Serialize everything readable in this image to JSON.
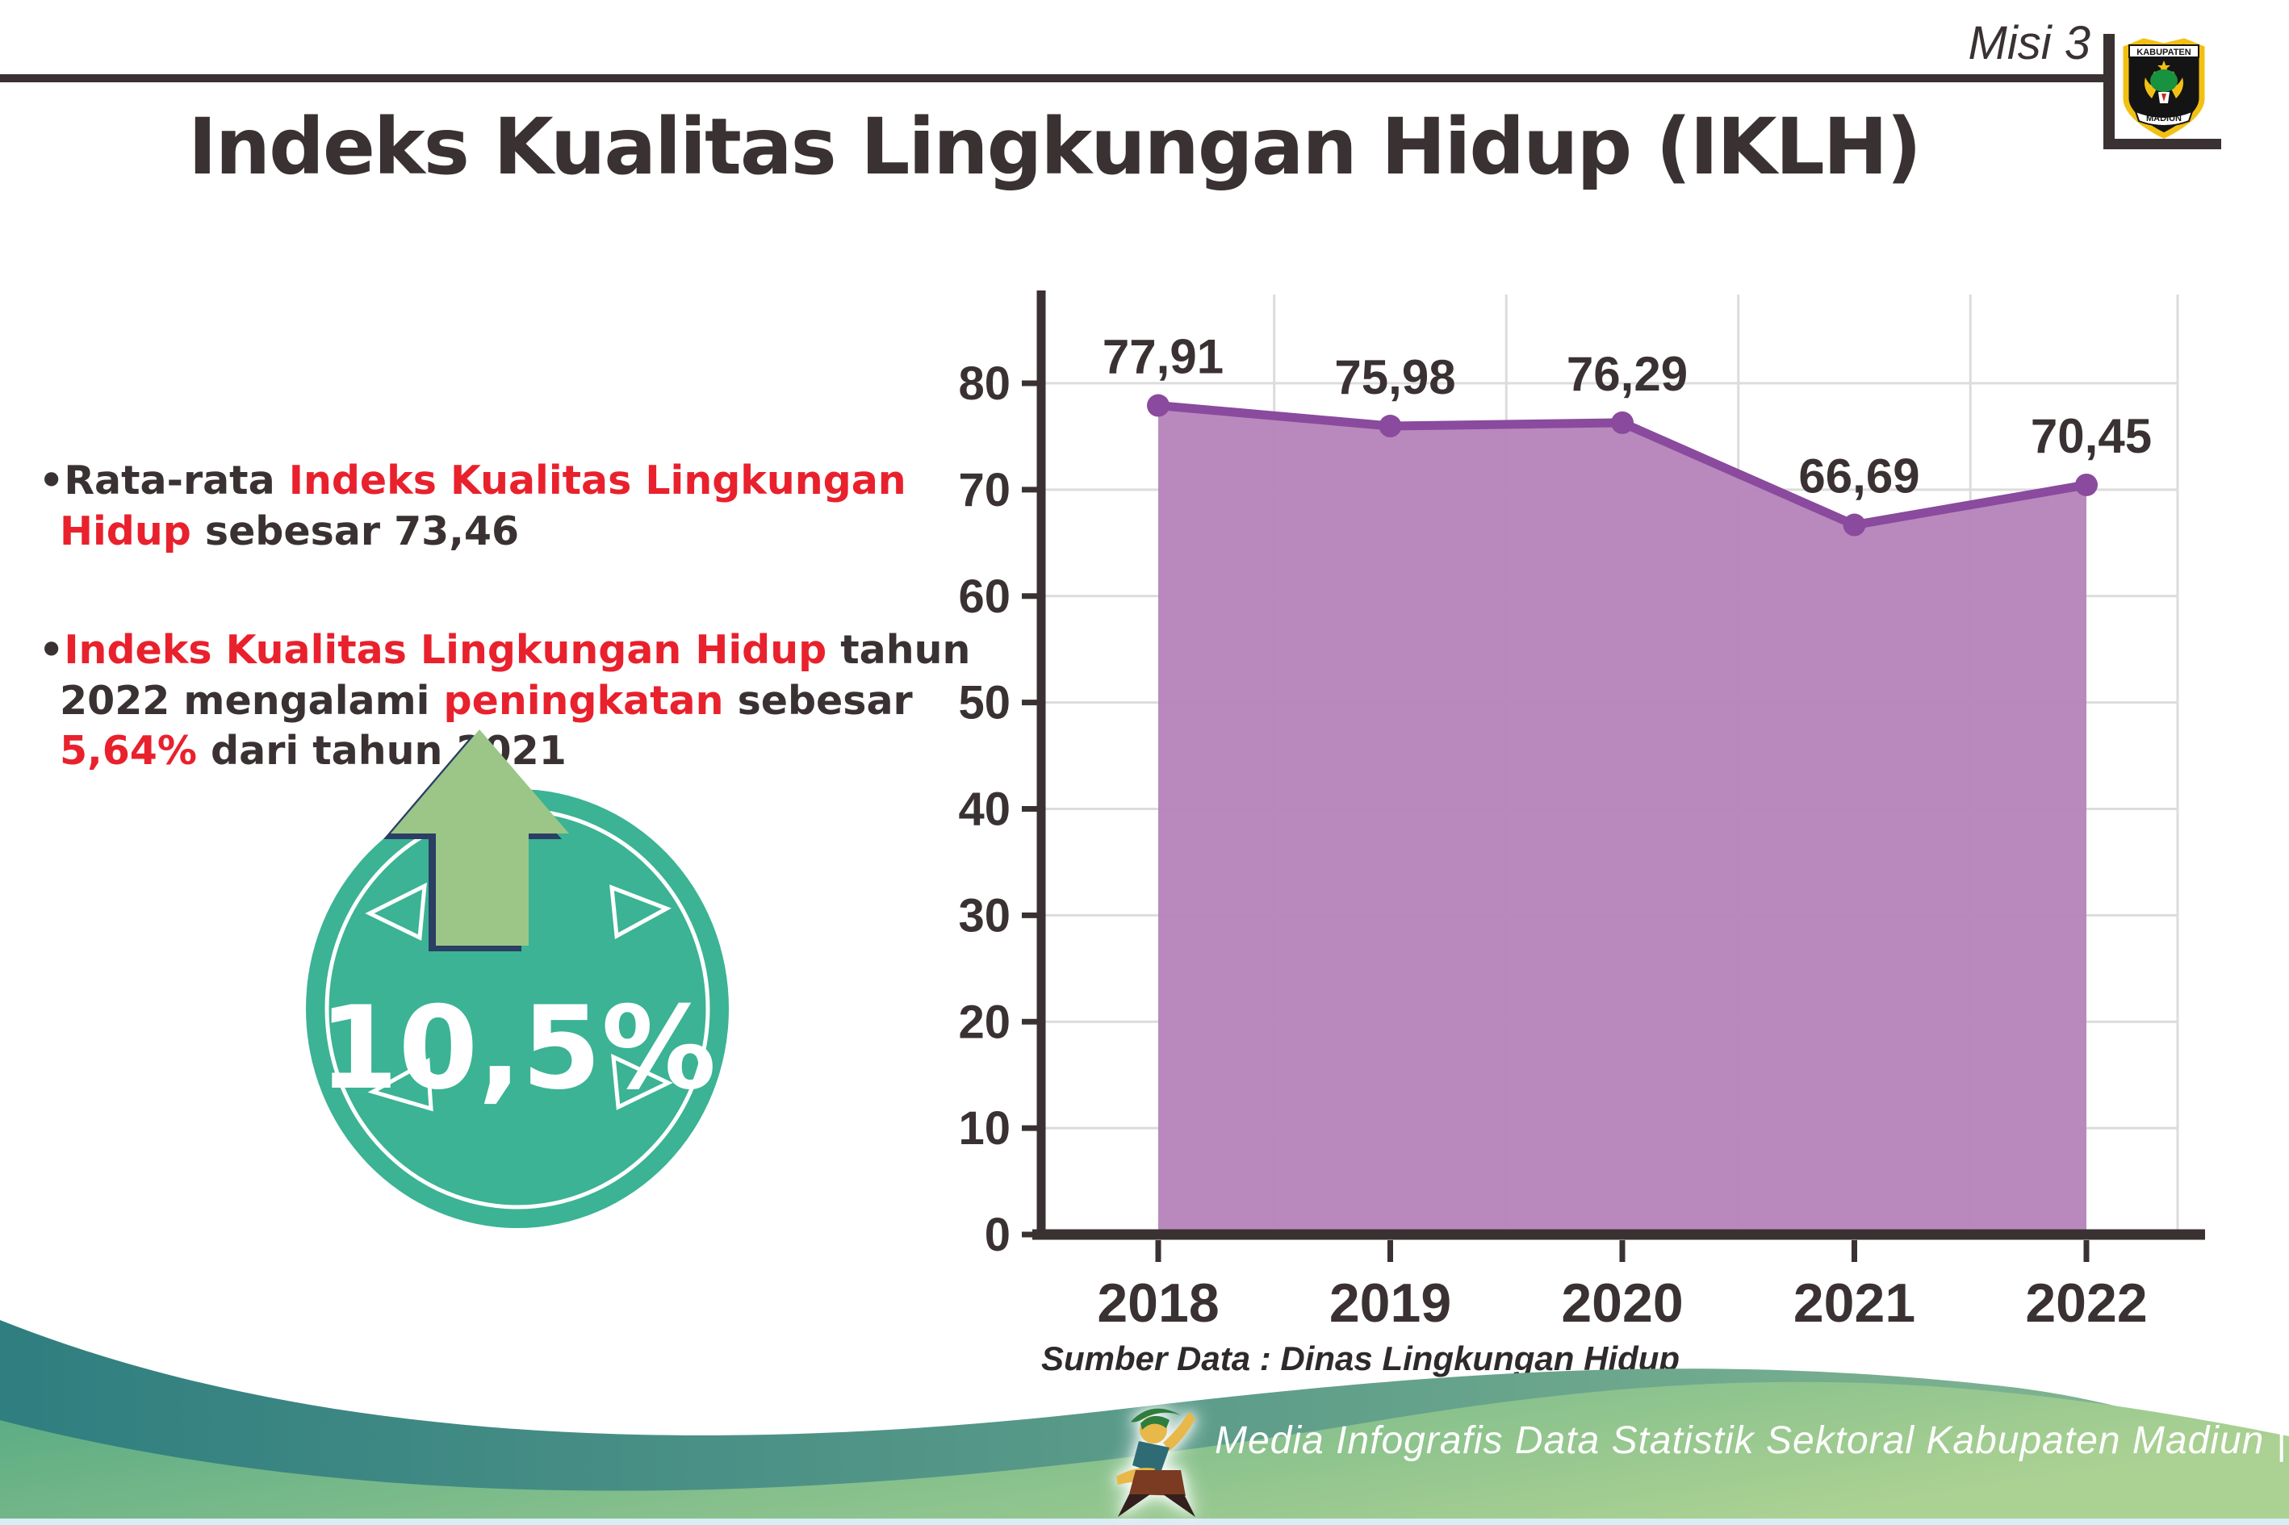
{
  "header": {
    "misi_label": "Misi 3",
    "title": "Indeks Kualitas Lingkungan Hidup (IKLH)",
    "logo": {
      "top_text": "KABUPATEN",
      "bottom_text": "MADIUN"
    }
  },
  "bullets": {
    "b1": {
      "marker": "•",
      "parts": [
        {
          "t": "Rata-rata "
        },
        {
          "t": "Indeks Kualitas Lingkungan Hidup"
        },
        {
          "t": " sebesar 73,46"
        }
      ]
    },
    "b2": {
      "marker": "•",
      "parts": [
        {
          "t": "Indeks Kualitas Lingkungan Hidup"
        },
        {
          "t": " tahun 2022 mengalami "
        },
        {
          "t": "peningkatan"
        },
        {
          "t": " sebesar "
        },
        {
          "t": "5,64%"
        },
        {
          "t": " dari tahun 2021"
        }
      ]
    }
  },
  "badge": {
    "value": "10,5%"
  },
  "chart_data": {
    "type": "area",
    "title": "Indeks Kualitas Lingkungan Hidup (IKLH)",
    "categories": [
      "2018",
      "2019",
      "2020",
      "2021",
      "2022"
    ],
    "values": [
      77.91,
      75.98,
      76.29,
      66.69,
      70.45
    ],
    "value_labels": [
      "77,91",
      "75,98",
      "76,29",
      "66,69",
      "70,45"
    ],
    "xlabel": "",
    "ylabel": "",
    "ylim": [
      0,
      80
    ],
    "ytick_step": 10,
    "ytick_labels": [
      "0",
      "10",
      "20",
      "30",
      "40",
      "50",
      "60",
      "70",
      "80"
    ],
    "grid": true,
    "legend": "none",
    "fill_color": "#b583bb",
    "line_color": "#8a4a9d",
    "source": "Sumber Data : Dinas Lingkungan Hidup"
  },
  "source_note": "Sumber Data : Dinas Lingkungan Hidup",
  "footer": {
    "caption": "Media Infografis Data Statistik Sektoral Kabupaten Madiun |"
  },
  "colors": {
    "dark": "#3a3132",
    "red": "#e8212d",
    "chart_fill": "#b583bb",
    "chart_line": "#8a4a9d",
    "grid": "#dcdcdc",
    "teal_badge": "#3bb394",
    "arrow_green": "#9cc688",
    "arrow_outline": "#2a3f63",
    "footer_teal_start": "#2f7e80",
    "footer_teal_end": "#86b892",
    "footer_green_start": "#55a983",
    "footer_green_end": "#abd193",
    "bottom_strip": "#d9edf5"
  }
}
